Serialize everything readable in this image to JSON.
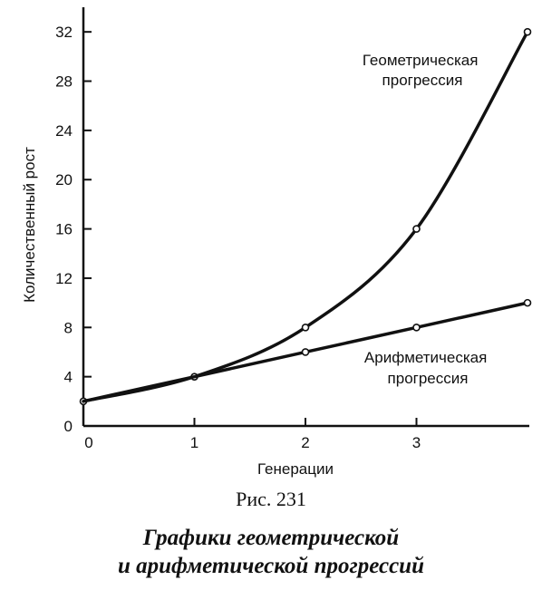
{
  "chart_data": {
    "type": "line",
    "xlabel": "Генерации",
    "ylabel": "Количественный рост",
    "xlim": [
      0,
      4
    ],
    "ylim": [
      0,
      34
    ],
    "x_ticks": [
      0,
      1,
      2,
      3
    ],
    "y_ticks": [
      0,
      4,
      8,
      12,
      16,
      20,
      24,
      28,
      32
    ],
    "grid": false,
    "series": [
      {
        "name_lines": [
          "Геометрическая",
          "прогрессия"
        ],
        "x": [
          0,
          1,
          2,
          3,
          4
        ],
        "y": [
          2,
          4,
          8,
          16,
          32
        ]
      },
      {
        "name_lines": [
          "Арифметическая",
          "прогрессия"
        ],
        "x": [
          0,
          1,
          2,
          3,
          4
        ],
        "y": [
          2,
          4,
          6,
          8,
          10
        ]
      }
    ]
  },
  "caption": {
    "figure_number": "Рис. 231",
    "title_lines": [
      "Графики геометрической",
      "и арифметической прогрессий"
    ]
  }
}
